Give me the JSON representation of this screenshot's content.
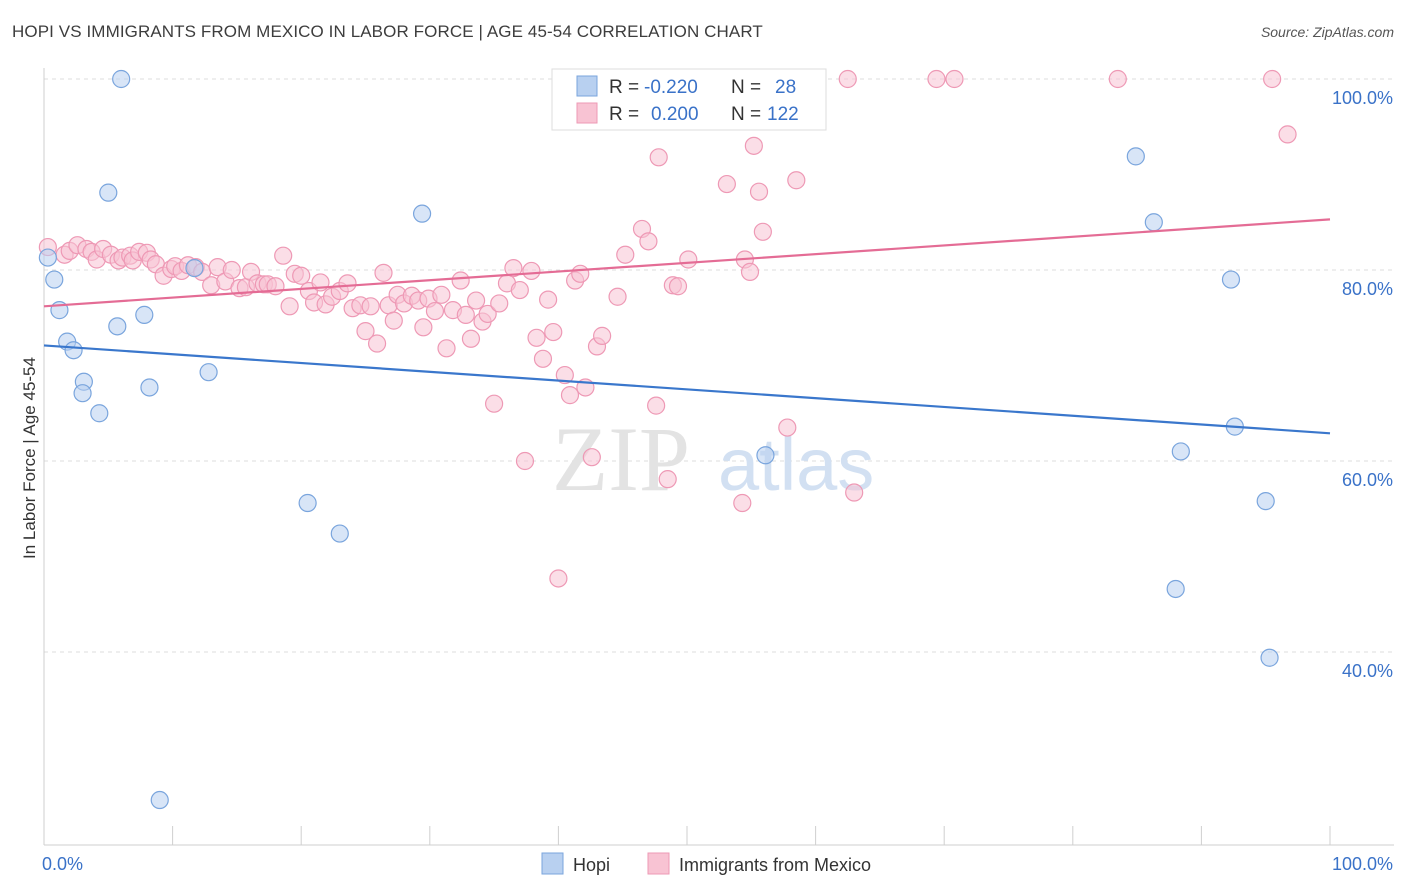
{
  "title": "HOPI VS IMMIGRANTS FROM MEXICO IN LABOR FORCE | AGE 45-54 CORRELATION CHART",
  "source": "Source: ZipAtlas.com",
  "watermark": {
    "zip": "ZIP",
    "atlas": "atlas"
  },
  "colors": {
    "hopi_fill": "#b8d0f0",
    "hopi_stroke": "#7aa5dd",
    "hopi_line": "#3a77cc",
    "mexico_fill": "#f8c3d3",
    "mexico_stroke": "#ee99b5",
    "mexico_line": "#e46c95",
    "axis_tick_label": "#3a72c8",
    "grid": "#dddddd"
  },
  "legend_top": {
    "rows": [
      {
        "r_label": "R =",
        "r_value": "-0.220",
        "n_label": "N =",
        "n_value": "28"
      },
      {
        "r_label": "R =",
        "r_value": "0.200",
        "n_label": "N =",
        "n_value": "122"
      }
    ]
  },
  "legend_bottom": {
    "hopi": "Hopi",
    "mexico": "Immigrants from Mexico"
  },
  "chart_data": {
    "type": "scatter",
    "xlabel": "",
    "ylabel": "In Labor Force | Age 45-54",
    "x_tick_labels": [
      "0.0%",
      "100.0%"
    ],
    "y_tick_labels": [
      "100.0%",
      "80.0%",
      "60.0%",
      "40.0%"
    ],
    "xlim": [
      0,
      100
    ],
    "ylim": [
      22,
      102
    ],
    "grid": true,
    "legend_position": "bottom",
    "series": [
      {
        "name": "Hopi",
        "r": -0.22,
        "n": 28,
        "trend": [
          [
            0,
            72.1
          ],
          [
            100,
            62.9
          ]
        ],
        "points": [
          [
            0.3,
            81.3
          ],
          [
            0.8,
            79.0
          ],
          [
            1.2,
            75.8
          ],
          [
            1.8,
            72.5
          ],
          [
            2.3,
            71.6
          ],
          [
            3.1,
            68.3
          ],
          [
            3.0,
            67.1
          ],
          [
            4.3,
            65.0
          ],
          [
            5.0,
            88.1
          ],
          [
            5.7,
            74.1
          ],
          [
            6.0,
            100.0
          ],
          [
            7.8,
            75.3
          ],
          [
            8.2,
            67.7
          ],
          [
            9.0,
            24.5
          ],
          [
            11.7,
            80.2
          ],
          [
            12.8,
            69.3
          ],
          [
            20.5,
            55.6
          ],
          [
            23.0,
            52.4
          ],
          [
            29.4,
            85.9
          ],
          [
            56.1,
            60.6
          ],
          [
            84.9,
            91.9
          ],
          [
            86.3,
            85.0
          ],
          [
            88.4,
            61.0
          ],
          [
            88.0,
            46.6
          ],
          [
            92.6,
            63.6
          ],
          [
            92.3,
            79.0
          ],
          [
            95.0,
            55.8
          ],
          [
            95.3,
            39.4
          ]
        ]
      },
      {
        "name": "Immigrants from Mexico",
        "r": 0.2,
        "n": 122,
        "trend": [
          [
            0,
            76.2
          ],
          [
            100,
            85.3
          ]
        ],
        "points": [
          [
            0.3,
            82.4
          ],
          [
            1.6,
            81.6
          ],
          [
            2.0,
            82.0
          ],
          [
            2.6,
            82.6
          ],
          [
            3.3,
            82.2
          ],
          [
            3.7,
            81.9
          ],
          [
            4.1,
            81.1
          ],
          [
            4.6,
            82.2
          ],
          [
            5.2,
            81.6
          ],
          [
            5.8,
            81.0
          ],
          [
            6.1,
            81.3
          ],
          [
            6.7,
            81.5
          ],
          [
            6.9,
            81.0
          ],
          [
            7.4,
            81.9
          ],
          [
            8.0,
            81.8
          ],
          [
            8.3,
            81.1
          ],
          [
            8.7,
            80.6
          ],
          [
            9.3,
            79.4
          ],
          [
            9.9,
            80.1
          ],
          [
            10.2,
            80.4
          ],
          [
            10.7,
            79.9
          ],
          [
            11.2,
            80.5
          ],
          [
            11.8,
            80.3
          ],
          [
            12.3,
            79.8
          ],
          [
            13.0,
            78.4
          ],
          [
            13.5,
            80.3
          ],
          [
            14.1,
            78.8
          ],
          [
            14.6,
            80.0
          ],
          [
            15.2,
            78.1
          ],
          [
            15.7,
            78.2
          ],
          [
            16.1,
            79.8
          ],
          [
            16.6,
            78.6
          ],
          [
            17.1,
            78.5
          ],
          [
            17.4,
            78.5
          ],
          [
            18.0,
            78.3
          ],
          [
            18.6,
            81.5
          ],
          [
            19.1,
            76.2
          ],
          [
            19.5,
            79.6
          ],
          [
            20.0,
            79.4
          ],
          [
            20.6,
            77.8
          ],
          [
            21.0,
            76.6
          ],
          [
            21.5,
            78.7
          ],
          [
            21.9,
            76.4
          ],
          [
            22.4,
            77.2
          ],
          [
            23.0,
            77.8
          ],
          [
            23.6,
            78.6
          ],
          [
            24.0,
            76.0
          ],
          [
            24.6,
            76.3
          ],
          [
            25.0,
            73.6
          ],
          [
            25.4,
            76.2
          ],
          [
            25.9,
            72.3
          ],
          [
            26.4,
            79.7
          ],
          [
            26.8,
            76.3
          ],
          [
            27.2,
            74.7
          ],
          [
            27.5,
            77.4
          ],
          [
            28.0,
            76.5
          ],
          [
            28.6,
            77.3
          ],
          [
            29.1,
            76.8
          ],
          [
            29.5,
            74.0
          ],
          [
            29.9,
            77.0
          ],
          [
            30.4,
            75.7
          ],
          [
            30.9,
            77.4
          ],
          [
            31.3,
            71.8
          ],
          [
            31.8,
            75.8
          ],
          [
            32.4,
            78.9
          ],
          [
            32.8,
            75.3
          ],
          [
            33.2,
            72.8
          ],
          [
            33.6,
            76.8
          ],
          [
            34.1,
            74.6
          ],
          [
            34.5,
            75.4
          ],
          [
            35.0,
            66.0
          ],
          [
            35.4,
            76.5
          ],
          [
            36.0,
            78.6
          ],
          [
            36.5,
            80.2
          ],
          [
            37.0,
            77.9
          ],
          [
            37.4,
            60.0
          ],
          [
            37.9,
            79.9
          ],
          [
            38.3,
            72.9
          ],
          [
            38.8,
            70.7
          ],
          [
            39.2,
            76.9
          ],
          [
            39.6,
            73.5
          ],
          [
            40.0,
            47.7
          ],
          [
            40.5,
            69.0
          ],
          [
            40.9,
            66.9
          ],
          [
            41.3,
            78.9
          ],
          [
            41.7,
            79.6
          ],
          [
            42.1,
            67.7
          ],
          [
            42.6,
            60.4
          ],
          [
            43.0,
            72.0
          ],
          [
            43.4,
            73.1
          ],
          [
            44.1,
            95.9
          ],
          [
            44.6,
            77.2
          ],
          [
            45.2,
            81.6
          ],
          [
            45.8,
            100.0
          ],
          [
            46.5,
            84.3
          ],
          [
            47.0,
            83.0
          ],
          [
            47.6,
            65.8
          ],
          [
            47.8,
            91.8
          ],
          [
            48.5,
            58.1
          ],
          [
            48.9,
            78.4
          ],
          [
            49.3,
            78.3
          ],
          [
            50.1,
            81.1
          ],
          [
            52.4,
            100.0
          ],
          [
            53.1,
            89.0
          ],
          [
            54.3,
            55.6
          ],
          [
            54.5,
            81.1
          ],
          [
            54.9,
            79.8
          ],
          [
            55.2,
            93.0
          ],
          [
            55.6,
            88.2
          ],
          [
            55.9,
            84.0
          ],
          [
            57.3,
            100.0
          ],
          [
            57.8,
            63.5
          ],
          [
            58.5,
            89.4
          ],
          [
            59.4,
            100.0
          ],
          [
            62.5,
            100.0
          ],
          [
            63.0,
            56.7
          ],
          [
            69.4,
            100.0
          ],
          [
            70.8,
            100.0
          ],
          [
            83.5,
            100.0
          ],
          [
            95.5,
            100.0
          ],
          [
            96.7,
            94.2
          ]
        ]
      }
    ]
  }
}
